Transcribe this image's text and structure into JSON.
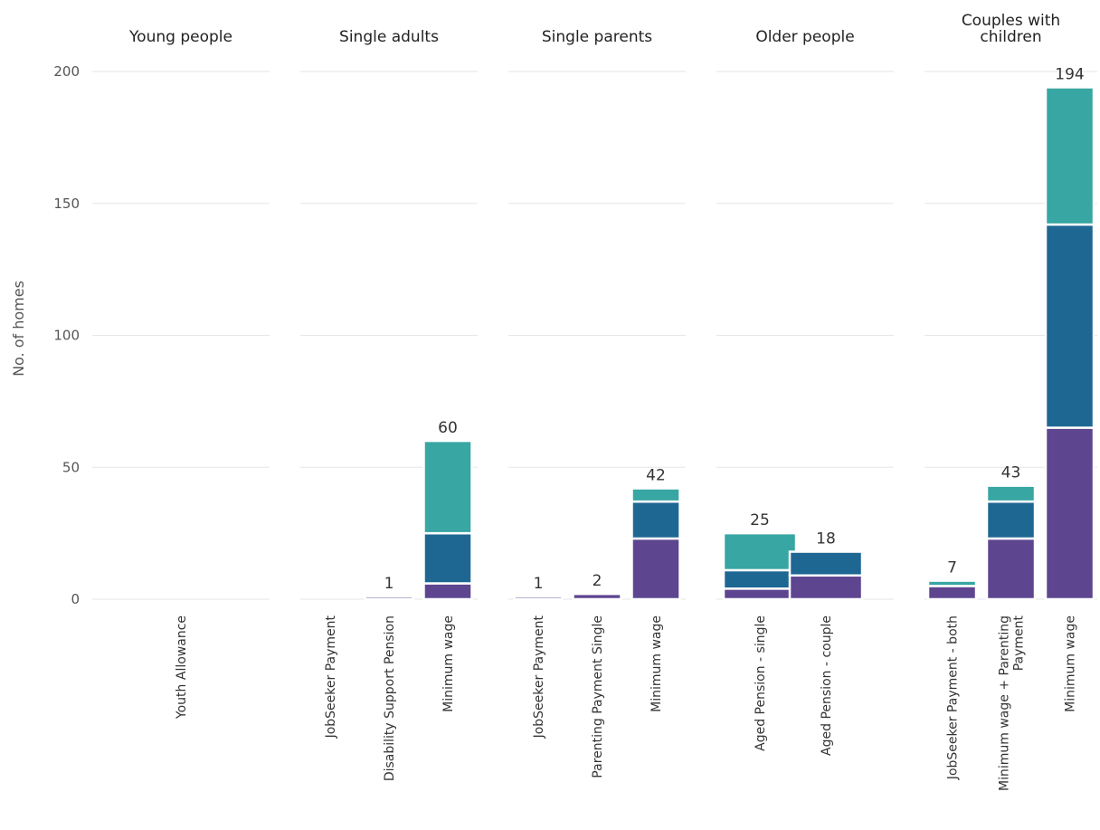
{
  "chart_data": {
    "type": "bar",
    "stacked": true,
    "faceted": true,
    "ylabel": "No. of homes",
    "ylim": [
      0,
      200
    ],
    "yticks": [
      "0",
      "50",
      "100",
      "150",
      "200"
    ],
    "ytick_values": [
      0,
      50,
      100,
      150,
      200
    ],
    "grid": true,
    "segment_colors": [
      "#5e4590",
      "#1f6793",
      "#38a6a2"
    ],
    "panels": [
      {
        "title_lines": [
          "Young people"
        ],
        "bars": [
          {
            "category_lines": [
              "Youth Allowance"
            ],
            "segments": [
              0,
              0,
              0
            ],
            "total": 0,
            "total_label": ""
          }
        ]
      },
      {
        "title_lines": [
          "Single adults"
        ],
        "bars": [
          {
            "category_lines": [
              "JobSeeker Payment"
            ],
            "segments": [
              0,
              0,
              0
            ],
            "total": 0,
            "total_label": ""
          },
          {
            "category_lines": [
              "Disability Support Pension"
            ],
            "segments": [
              1,
              0,
              0
            ],
            "total": 1,
            "total_label": "1"
          },
          {
            "category_lines": [
              "Minimum wage"
            ],
            "segments": [
              6,
              19,
              35
            ],
            "total": 60,
            "total_label": "60"
          }
        ]
      },
      {
        "title_lines": [
          "Single parents"
        ],
        "bars": [
          {
            "category_lines": [
              "JobSeeker Payment"
            ],
            "segments": [
              1,
              0,
              0
            ],
            "total": 1,
            "total_label": "1"
          },
          {
            "category_lines": [
              "Parenting Payment Single"
            ],
            "segments": [
              2,
              0,
              0
            ],
            "total": 2,
            "total_label": "2"
          },
          {
            "category_lines": [
              "Minimum wage"
            ],
            "segments": [
              23,
              14,
              5
            ],
            "total": 42,
            "total_label": "42"
          }
        ]
      },
      {
        "title_lines": [
          "Older people"
        ],
        "bars": [
          {
            "category_lines": [
              "Aged Pension - single"
            ],
            "segments": [
              4,
              7,
              14
            ],
            "total": 25,
            "total_label": "25"
          },
          {
            "category_lines": [
              "Aged Pension - couple"
            ],
            "segments": [
              9,
              9,
              0
            ],
            "total": 18,
            "total_label": "18"
          }
        ]
      },
      {
        "title_lines": [
          "Couples with",
          "children"
        ],
        "bars": [
          {
            "category_lines": [
              "JobSeeker Payment - both"
            ],
            "segments": [
              5,
              0,
              2
            ],
            "total": 7,
            "total_label": "7"
          },
          {
            "category_lines": [
              "Minimum wage + Parenting",
              "Payment"
            ],
            "segments": [
              23,
              14,
              6
            ],
            "total": 43,
            "total_label": "43"
          },
          {
            "category_lines": [
              "Minimum wage"
            ],
            "segments": [
              65,
              77,
              52
            ],
            "total": 194,
            "total_label": "194"
          }
        ]
      }
    ]
  }
}
